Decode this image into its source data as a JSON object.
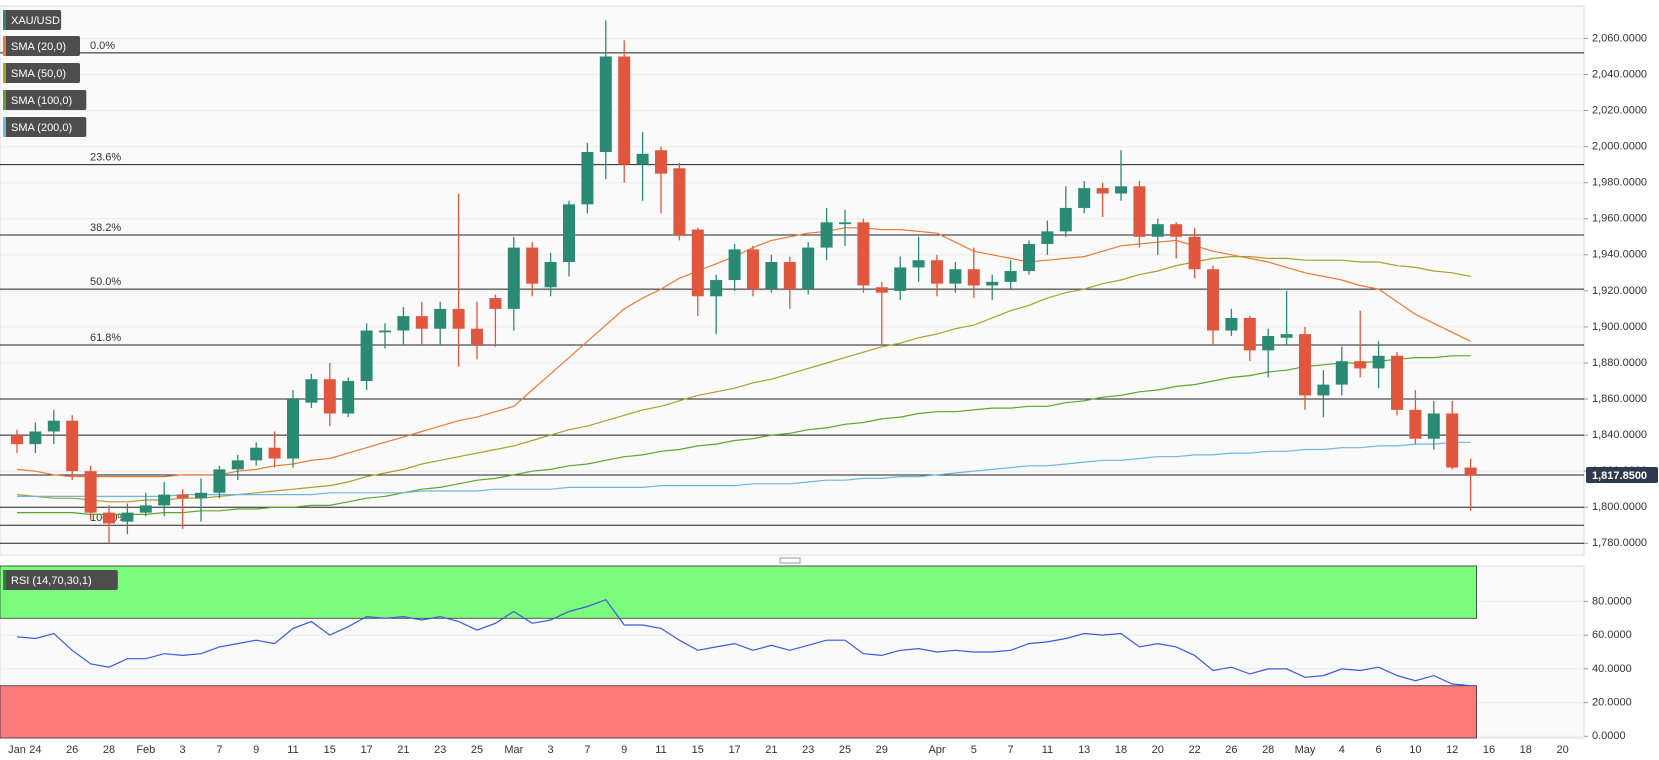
{
  "chart_data": {
    "type": "candlestick",
    "symbol": "XAU/USD",
    "categories": [
      "Jan",
      "24",
      null,
      "26",
      null,
      "28",
      null,
      "Feb",
      null,
      "3",
      null,
      "7",
      null,
      "9",
      null,
      "11",
      null,
      "15",
      null,
      "17",
      null,
      "21",
      null,
      "23",
      null,
      "25",
      null,
      "Mar",
      null,
      "3",
      null,
      "7",
      null,
      "9",
      null,
      "11",
      null,
      "15",
      null,
      "17",
      null,
      "21",
      null,
      "23",
      null,
      "25",
      null,
      "29",
      null,
      null,
      "Apr",
      null,
      "5",
      null,
      "7",
      null,
      "11",
      null,
      "13",
      null,
      "18",
      null,
      "20",
      null,
      "22",
      null,
      "26",
      null,
      "28",
      null,
      "May",
      null,
      "4",
      null,
      "6",
      null,
      "10",
      null,
      "12",
      null,
      "16",
      null,
      "18",
      null,
      "20"
    ],
    "open": [
      1840,
      1835,
      1842,
      1848,
      1820,
      1797,
      1792,
      1797,
      1801,
      1807,
      1805,
      1808,
      1821,
      1826,
      1833,
      1827,
      1858,
      1871,
      1852,
      1870,
      1897,
      1898,
      1906,
      1899,
      1910,
      1899,
      1916,
      1910,
      1944,
      1922,
      1936,
      1968,
      1997,
      2050,
      1990,
      1998,
      1988,
      1954,
      1917,
      1926,
      1943,
      1921,
      1936,
      1921,
      1944,
      1957,
      1958,
      1922,
      1920,
      1933,
      1937,
      1924,
      1932,
      1923,
      1925,
      1931,
      1946,
      1953,
      1966,
      1977,
      1974,
      1978,
      1950,
      1957,
      1950,
      1932,
      1898,
      1905,
      1887,
      1894,
      1896,
      1862,
      1868,
      1881,
      1877,
      1884,
      1854,
      1838,
      1852,
      1822,
      null,
      null,
      null,
      null,
      null
    ],
    "high": [
      1843,
      1847,
      1854,
      1851,
      1823,
      1801,
      1802,
      1808,
      1814,
      1810,
      1816,
      1823,
      1829,
      1836,
      1842,
      1865,
      1874,
      1880,
      1872,
      1902,
      1902,
      1911,
      1914,
      1914,
      1974,
      1914,
      1918,
      1950,
      1947,
      1941,
      1970,
      2002,
      2070,
      2059,
      2008,
      2000,
      1991,
      1955,
      1929,
      1946,
      1945,
      1940,
      1939,
      1947,
      1966,
      1965,
      1960,
      1925,
      1939,
      1950,
      1940,
      1936,
      1944,
      1929,
      1937,
      1948,
      1959,
      1978,
      1981,
      1980,
      1998,
      1981,
      1960,
      1958,
      1955,
      1934,
      1910,
      1906,
      1899,
      1920,
      1900,
      1876,
      1889,
      1909,
      1892,
      1886,
      1865,
      1859,
      1859,
      1827,
      null,
      null,
      null,
      null,
      null
    ],
    "low": [
      1830,
      1830,
      1835,
      1815,
      1793,
      1780,
      1785,
      1795,
      1795,
      1788,
      1792,
      1805,
      1815,
      1823,
      1822,
      1822,
      1855,
      1845,
      1850,
      1865,
      1888,
      1890,
      1890,
      1890,
      1878,
      1882,
      1889,
      1898,
      1917,
      1917,
      1928,
      1963,
      1982,
      1980,
      1970,
      1963,
      1948,
      1906,
      1896,
      1920,
      1917,
      1919,
      1910,
      1918,
      1937,
      1945,
      1919,
      1890,
      1915,
      1925,
      1917,
      1919,
      1916,
      1915,
      1921,
      1929,
      1940,
      1950,
      1963,
      1961,
      1970,
      1944,
      1940,
      1938,
      1927,
      1890,
      1895,
      1881,
      1872,
      1890,
      1854,
      1850,
      1862,
      1872,
      1866,
      1851,
      1835,
      1832,
      1821,
      1798,
      null,
      null,
      null,
      null,
      null
    ],
    "close": [
      1835,
      1842,
      1848,
      1820,
      1797,
      1791,
      1797,
      1801,
      1807,
      1805,
      1808,
      1821,
      1826,
      1833,
      1827,
      1860,
      1871,
      1852,
      1870,
      1898,
      1898,
      1906,
      1899,
      1910,
      1899,
      1890,
      1910,
      1944,
      1924,
      1936,
      1968,
      1997,
      2050,
      1990,
      1996,
      1985,
      1951,
      1917,
      1926,
      1943,
      1921,
      1936,
      1921,
      1944,
      1958,
      1958,
      1923,
      1919,
      1933,
      1937,
      1924,
      1932,
      1923,
      1925,
      1931,
      1946,
      1953,
      1966,
      1977,
      1974,
      1978,
      1950,
      1957,
      1950,
      1932,
      1898,
      1905,
      1887,
      1895,
      1896,
      1862,
      1868,
      1881,
      1877,
      1884,
      1854,
      1838,
      1852,
      1822,
      1817.85,
      null,
      null,
      null,
      null,
      null
    ],
    "up_color": "#2b8a74",
    "down_color": "#e0563f",
    "overlays": [
      {
        "name": "SMA (20,0)",
        "color": "#ea7b36",
        "values": [
          1821,
          1820,
          1818,
          1817,
          1817,
          1817,
          1817,
          1817,
          1817,
          1818,
          1818,
          1818,
          1820,
          1821,
          1823,
          1824,
          1826,
          1827,
          1830,
          1833,
          1836,
          1839,
          1842,
          1845,
          1848,
          1850,
          1853,
          1856,
          1865,
          1874,
          1883,
          1892,
          1901,
          1910,
          1916,
          1921,
          1927,
          1931,
          1935,
          1939,
          1944,
          1948,
          1950,
          1952,
          1953,
          1955,
          1955,
          1954,
          1954,
          1953,
          1952,
          1947,
          1942,
          1940,
          1938,
          1936,
          1937,
          1938,
          1939,
          1942,
          1945,
          1946,
          1947,
          1948,
          1945,
          1942,
          1940,
          1938,
          1936,
          1933,
          1930,
          1928,
          1926,
          1923,
          1921,
          1914,
          1907,
          1902,
          1897,
          1892,
          null,
          null,
          null,
          null,
          null
        ]
      },
      {
        "name": "SMA (50,0)",
        "color": "#ad9f2c",
        "values": [
          1807,
          1806,
          1805,
          1805,
          1804,
          1803,
          1803,
          1804,
          1804,
          1805,
          1805,
          1806,
          1807,
          1808,
          1809,
          1810,
          1811,
          1812,
          1814,
          1817,
          1819,
          1821,
          1824,
          1826,
          1828,
          1830,
          1832,
          1834,
          1837,
          1840,
          1843,
          1845,
          1848,
          1851,
          1854,
          1856,
          1859,
          1862,
          1864,
          1866,
          1869,
          1871,
          1874,
          1877,
          1880,
          1883,
          1886,
          1889,
          1891,
          1894,
          1896,
          1899,
          1901,
          1905,
          1909,
          1912,
          1916,
          1919,
          1921,
          1924,
          1926,
          1929,
          1931,
          1934,
          1936,
          1938,
          1939,
          1939,
          1938,
          1938,
          1937,
          1937,
          1937,
          1936,
          1936,
          1934,
          1933,
          1931,
          1930,
          1928,
          null,
          null,
          null,
          null,
          null
        ]
      },
      {
        "name": "SMA (100,0)",
        "color": "#5da62c",
        "values": [
          1797,
          1797,
          1797,
          1797,
          1796,
          1796,
          1796,
          1796,
          1797,
          1797,
          1798,
          1798,
          1799,
          1799,
          1800,
          1800,
          1801,
          1801,
          1803,
          1805,
          1806,
          1808,
          1810,
          1811,
          1813,
          1815,
          1816,
          1818,
          1820,
          1821,
          1823,
          1824,
          1826,
          1828,
          1829,
          1831,
          1832,
          1834,
          1835,
          1837,
          1838,
          1840,
          1841,
          1843,
          1844,
          1846,
          1847,
          1849,
          1850,
          1852,
          1853,
          1853,
          1854,
          1855,
          1855,
          1856,
          1856,
          1858,
          1859,
          1861,
          1862,
          1864,
          1865,
          1867,
          1868,
          1870,
          1872,
          1873,
          1875,
          1876,
          1878,
          1879,
          1880,
          1880,
          1881,
          1882,
          1883,
          1883,
          1884,
          1884,
          null,
          null,
          null,
          null,
          null
        ]
      },
      {
        "name": "SMA (200,0)",
        "color": "#6cb6e6",
        "values": [
          1806,
          1806,
          1806,
          1806,
          1806,
          1806,
          1806,
          1806,
          1806,
          1807,
          1807,
          1807,
          1807,
          1807,
          1807,
          1807,
          1807,
          1808,
          1808,
          1808,
          1808,
          1808,
          1809,
          1809,
          1809,
          1809,
          1810,
          1810,
          1810,
          1810,
          1811,
          1811,
          1811,
          1811,
          1811,
          1812,
          1812,
          1812,
          1812,
          1812,
          1813,
          1813,
          1813,
          1814,
          1815,
          1815,
          1816,
          1816,
          1817,
          1817,
          1818,
          1819,
          1820,
          1821,
          1822,
          1823,
          1823,
          1824,
          1825,
          1826,
          1826,
          1827,
          1828,
          1828,
          1829,
          1829,
          1830,
          1830,
          1831,
          1831,
          1832,
          1832,
          1833,
          1833,
          1834,
          1834,
          1835,
          1835,
          1836,
          1836,
          null,
          null,
          null,
          null,
          null
        ]
      }
    ],
    "ylim": [
      1773.5,
      2078
    ],
    "yticks": [
      {
        "value": 1780,
        "label": "1,780.0000"
      },
      {
        "value": 1800,
        "label": "1,800.0000"
      },
      {
        "value": 1820,
        "label": "1,820.0000"
      },
      {
        "value": 1840,
        "label": "1,840.0000"
      },
      {
        "value": 1860,
        "label": "1,860.0000"
      },
      {
        "value": 1880,
        "label": "1,880.0000"
      },
      {
        "value": 1900,
        "label": "1,900.0000"
      },
      {
        "value": 1920,
        "label": "1,920.0000"
      },
      {
        "value": 1940,
        "label": "1,940.0000"
      },
      {
        "value": 1960,
        "label": "1,960.0000"
      },
      {
        "value": 1980,
        "label": "1,980.0000"
      },
      {
        "value": 2000,
        "label": "2,000.0000"
      },
      {
        "value": 2020,
        "label": "2,020.0000"
      },
      {
        "value": 2040,
        "label": "2,040.0000"
      },
      {
        "value": 2060,
        "label": "2,060.0000"
      }
    ],
    "grid": true,
    "last_price": 1817.85,
    "last_price_label": "1,817.8500",
    "levels": [
      1860,
      1840,
      1800,
      1780
    ],
    "fib_levels": [
      {
        "value": 2052,
        "label": "0.0%"
      },
      {
        "value": 1990,
        "label": "23.6%"
      },
      {
        "value": 1951,
        "label": "38.2%"
      },
      {
        "value": 1921,
        "label": "50.0%"
      },
      {
        "value": 1890,
        "label": "61.8%"
      },
      {
        "value": 1790,
        "label": "100.0%"
      }
    ],
    "indicator": {
      "name": "RSI (14,70,30,1)",
      "color": "#3a5bd9",
      "values": [
        59,
        58,
        61,
        51,
        43,
        41,
        46,
        46,
        49,
        48,
        49,
        53,
        55,
        57,
        55,
        64,
        68,
        60,
        65,
        71,
        70,
        71,
        69,
        71,
        68,
        63,
        67,
        74,
        67,
        69,
        74,
        77,
        81,
        66,
        66,
        64,
        57,
        51,
        53,
        55,
        51,
        54,
        51,
        54,
        57,
        57,
        49,
        48,
        51,
        52,
        50,
        51,
        50,
        50,
        51,
        55,
        56,
        58,
        61,
        60,
        61,
        53,
        55,
        53,
        48,
        39,
        41,
        37,
        40,
        40,
        35,
        36,
        40,
        39,
        41,
        36,
        33,
        36,
        31,
        30,
        null,
        null,
        null,
        null,
        null
      ],
      "ylim": [
        -1,
        101
      ],
      "yticks": [
        {
          "value": 0,
          "label": "0.0000"
        },
        {
          "value": 20,
          "label": "20.0000"
        },
        {
          "value": 40,
          "label": "40.0000"
        },
        {
          "value": 60,
          "label": "60.0000"
        },
        {
          "value": 80,
          "label": "80.0000"
        }
      ],
      "overbought": 70,
      "oversold": 30,
      "overbought_color": "#7cfc7c",
      "oversold_color": "#fc7c7c"
    }
  }
}
